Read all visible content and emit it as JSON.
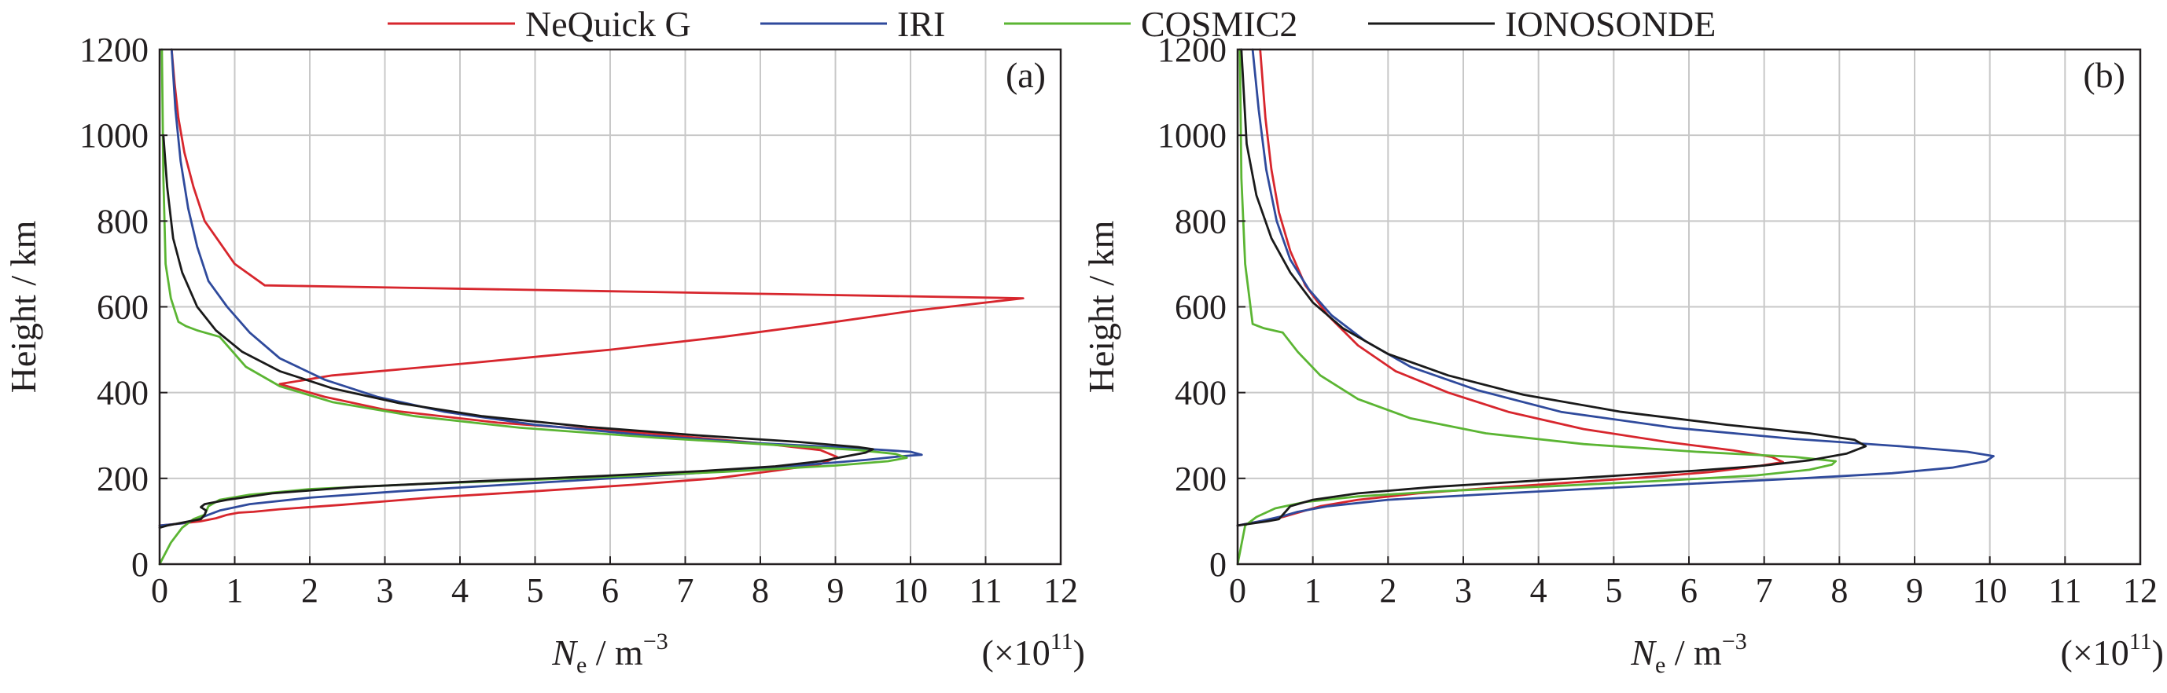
{
  "legend": {
    "items": [
      {
        "label": "NeQuick G",
        "color": "#d7262d"
      },
      {
        "label": "IRI",
        "color": "#2f4a9c"
      },
      {
        "label": "COSMIC2",
        "color": "#5bb533"
      },
      {
        "label": "IONOSONDE",
        "color": "#1a1a1a"
      }
    ]
  },
  "chart_data": [
    {
      "type": "line",
      "panel_label": "(a)",
      "xlabel": "N",
      "xlabel_sub": "e",
      "xlabel_unit": " / m",
      "xlabel_unit_sup": "−3",
      "x_multiplier": "(×10",
      "x_multiplier_sup": "11",
      "x_multiplier_close": ")",
      "ylabel": "Height / km",
      "xlim": [
        0,
        12
      ],
      "ylim": [
        0,
        1200
      ],
      "xticks": [
        "0",
        "1",
        "2",
        "3",
        "4",
        "5",
        "6",
        "7",
        "8",
        "9",
        "10",
        "11",
        "12"
      ],
      "yticks": [
        "0",
        "200",
        "400",
        "600",
        "800",
        "1000",
        "1200"
      ],
      "grid": true,
      "series": [
        {
          "name": "NeQuick G",
          "color": "#d7262d",
          "x": [
            0.0,
            0.3,
            0.55,
            0.75,
            0.9,
            1.05,
            1.25,
            1.6,
            2.4,
            3.6,
            5.0,
            6.3,
            7.4,
            8.2,
            8.8,
            9.02,
            8.8,
            8.0,
            6.5,
            4.5,
            3.0,
            2.2,
            1.6,
            2.3,
            4.2,
            6.0,
            7.5,
            8.8,
            10.0,
            11.5,
            1.4,
            1.0,
            0.8,
            0.6,
            0.45,
            0.33,
            0.25,
            0.2,
            0.16
          ],
          "y": [
            90,
            95,
            100,
            107,
            115,
            120,
            122,
            128,
            138,
            155,
            170,
            185,
            200,
            218,
            233,
            250,
            266,
            282,
            305,
            330,
            360,
            390,
            420,
            440,
            470,
            500,
            530,
            560,
            590,
            620,
            650,
            700,
            750,
            800,
            880,
            960,
            1040,
            1120,
            1200
          ]
        },
        {
          "name": "IRI",
          "color": "#2f4a9c",
          "x": [
            0.0,
            0.3,
            0.5,
            0.65,
            0.8,
            1.2,
            2.0,
            3.2,
            4.6,
            6.0,
            7.4,
            8.5,
            9.4,
            9.9,
            10.15,
            10.0,
            9.3,
            8.0,
            6.5,
            5.0,
            3.8,
            2.9,
            2.2,
            1.6,
            1.2,
            0.9,
            0.65,
            0.5,
            0.38,
            0.28,
            0.21,
            0.16
          ],
          "y": [
            90,
            95,
            105,
            115,
            125,
            140,
            155,
            170,
            185,
            200,
            215,
            230,
            243,
            252,
            255,
            262,
            270,
            282,
            300,
            325,
            355,
            390,
            430,
            480,
            540,
            600,
            660,
            740,
            830,
            940,
            1060,
            1200
          ]
        },
        {
          "name": "COSMIC2",
          "color": "#5bb533",
          "x": [
            0.0,
            0.15,
            0.3,
            0.45,
            0.6,
            0.65,
            0.8,
            1.2,
            2.0,
            3.5,
            5.5,
            7.5,
            9.0,
            9.7,
            9.95,
            9.8,
            9.3,
            8.2,
            6.6,
            4.8,
            3.4,
            2.3,
            1.6,
            1.15,
            0.95,
            0.8,
            0.5,
            0.35,
            0.25,
            0.15,
            0.08,
            0.05,
            0.03
          ],
          "y": [
            0,
            50,
            85,
            105,
            115,
            135,
            150,
            162,
            175,
            187,
            200,
            215,
            230,
            240,
            248,
            257,
            266,
            278,
            295,
            318,
            345,
            378,
            415,
            460,
            500,
            530,
            545,
            555,
            565,
            620,
            700,
            900,
            1200
          ]
        },
        {
          "name": "IONOSONDE",
          "color": "#1a1a1a",
          "x": [
            0.0,
            0.1,
            0.25,
            0.4,
            0.55,
            0.6,
            0.62,
            0.55,
            0.6,
            0.9,
            1.5,
            2.6,
            4.2,
            5.8,
            7.2,
            8.2,
            8.8,
            9.1,
            9.4,
            9.5,
            9.3,
            8.5,
            7.2,
            5.7,
            4.3,
            3.2,
            2.3,
            1.6,
            1.1,
            0.75,
            0.5,
            0.3,
            0.18,
            0.1,
            0.05
          ],
          "y": [
            85,
            90,
            95,
            100,
            105,
            115,
            125,
            133,
            140,
            150,
            165,
            180,
            193,
            205,
            217,
            228,
            240,
            250,
            260,
            268,
            273,
            285,
            300,
            320,
            345,
            375,
            410,
            450,
            495,
            545,
            600,
            680,
            760,
            880,
            1000
          ]
        }
      ]
    },
    {
      "type": "line",
      "panel_label": "(b)",
      "xlabel": "N",
      "xlabel_sub": "e",
      "xlabel_unit": " / m",
      "xlabel_unit_sup": "−3",
      "x_multiplier": "(×10",
      "x_multiplier_sup": "11",
      "x_multiplier_close": ")",
      "ylabel": "Height / km",
      "xlim": [
        0,
        12
      ],
      "ylim": [
        0,
        1200
      ],
      "xticks": [
        "0",
        "1",
        "2",
        "3",
        "4",
        "5",
        "6",
        "7",
        "8",
        "9",
        "10",
        "11",
        "12"
      ],
      "yticks": [
        "0",
        "200",
        "400",
        "600",
        "800",
        "1000",
        "1200"
      ],
      "grid": true,
      "series": [
        {
          "name": "NeQuick G",
          "color": "#d7262d",
          "x": [
            0.0,
            0.3,
            0.6,
            0.8,
            1.1,
            1.6,
            2.4,
            3.4,
            4.4,
            5.4,
            6.3,
            6.9,
            7.25,
            7.1,
            6.6,
            5.7,
            4.6,
            3.6,
            2.8,
            2.1,
            1.6,
            1.2,
            0.9,
            0.7,
            0.55,
            0.45,
            0.37,
            0.3
          ],
          "y": [
            90,
            100,
            110,
            120,
            135,
            150,
            165,
            178,
            190,
            202,
            215,
            228,
            238,
            250,
            265,
            285,
            315,
            355,
            400,
            450,
            510,
            580,
            650,
            730,
            820,
            920,
            1040,
            1200
          ]
        },
        {
          "name": "IRI",
          "color": "#2f4a9c",
          "x": [
            0.0,
            0.3,
            0.6,
            0.8,
            1.2,
            2.0,
            3.2,
            4.6,
            6.1,
            7.5,
            8.7,
            9.5,
            9.95,
            10.05,
            9.7,
            8.8,
            7.4,
            5.8,
            4.3,
            3.2,
            2.3,
            1.7,
            1.25,
            0.95,
            0.7,
            0.52,
            0.38,
            0.28,
            0.2
          ],
          "y": [
            90,
            100,
            112,
            122,
            135,
            150,
            162,
            175,
            188,
            200,
            212,
            225,
            240,
            252,
            262,
            275,
            292,
            318,
            355,
            405,
            460,
            520,
            580,
            640,
            710,
            800,
            920,
            1060,
            1200
          ]
        },
        {
          "name": "COSMIC2",
          "color": "#5bb533",
          "x": [
            0.0,
            0.1,
            0.25,
            0.5,
            0.9,
            1.6,
            2.7,
            4.2,
            5.7,
            6.9,
            7.6,
            7.9,
            7.95,
            7.4,
            6.1,
            4.6,
            3.3,
            2.3,
            1.6,
            1.1,
            0.8,
            0.6,
            0.35,
            0.2,
            0.1,
            0.05,
            0.03
          ],
          "y": [
            0,
            90,
            110,
            130,
            145,
            158,
            170,
            182,
            195,
            207,
            220,
            232,
            240,
            250,
            262,
            280,
            305,
            340,
            385,
            440,
            495,
            540,
            550,
            560,
            700,
            900,
            1200
          ]
        },
        {
          "name": "IONOSONDE",
          "color": "#1a1a1a",
          "x": [
            0.0,
            0.2,
            0.4,
            0.55,
            0.6,
            0.65,
            0.7,
            1.0,
            1.6,
            2.6,
            3.8,
            5.0,
            6.1,
            7.0,
            7.6,
            8.1,
            8.35,
            8.2,
            7.6,
            6.5,
            5.1,
            3.8,
            2.8,
            2.0,
            1.4,
            1.0,
            0.7,
            0.45,
            0.25,
            0.12,
            0.05
          ],
          "y": [
            90,
            95,
            100,
            105,
            115,
            125,
            135,
            150,
            165,
            180,
            193,
            206,
            218,
            230,
            242,
            258,
            275,
            290,
            305,
            325,
            355,
            395,
            440,
            490,
            550,
            610,
            680,
            760,
            860,
            980,
            1200
          ]
        }
      ]
    }
  ]
}
